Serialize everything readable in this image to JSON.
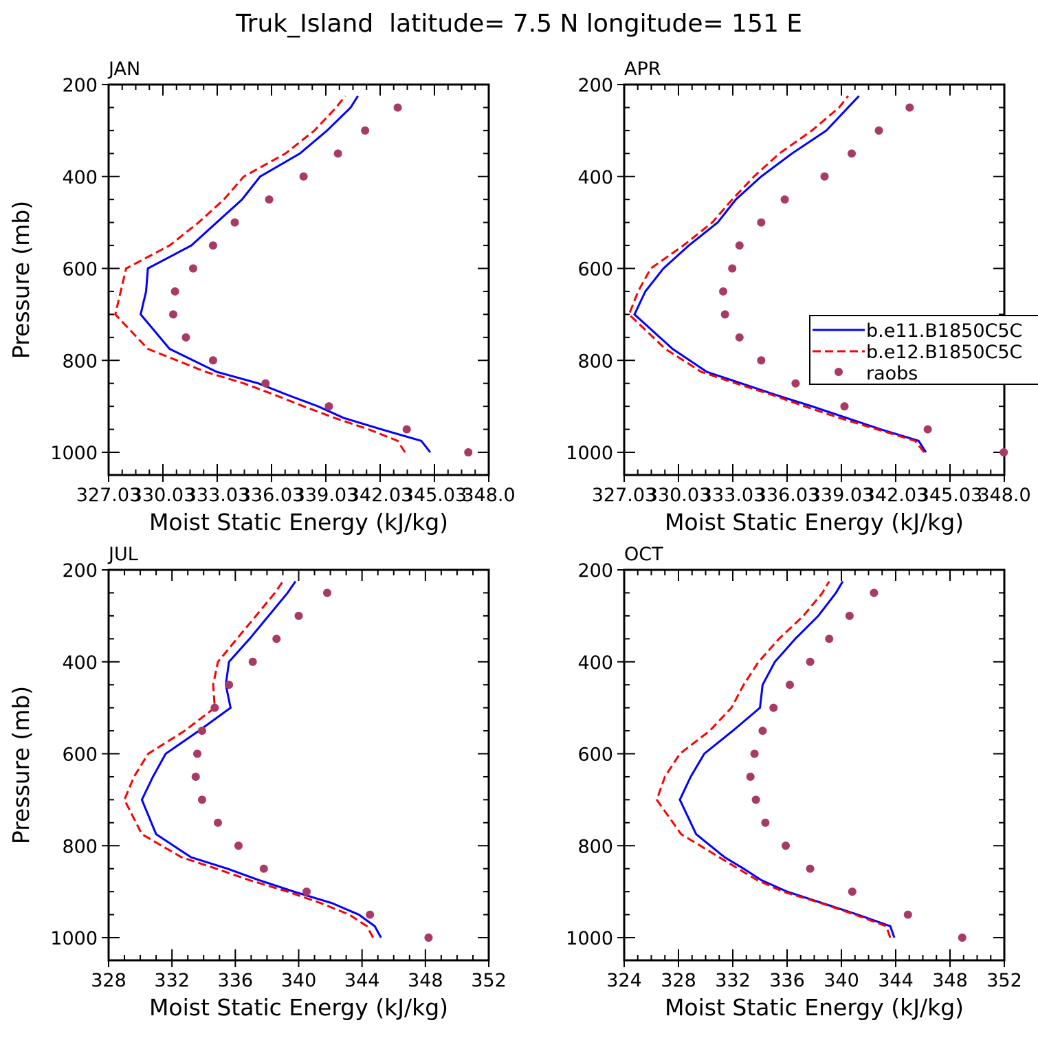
{
  "figure_title": "Truk_Island  latitude= 7.5 N longitude= 151 E",
  "colors": {
    "model_1": "#0000ff",
    "model_2": "#ff0000",
    "raobs": "#a83a66",
    "axis": "#000000"
  },
  "legend": {
    "entries": [
      "b.e11.B1850C5C",
      "b.e12.B1850C5C",
      "raobs"
    ],
    "placement": "right of APR panel, spanning past figure edge"
  },
  "chart_data": [
    {
      "type": "line",
      "panel": "JAN",
      "title": "JAN",
      "xlabel": "Moist Static Energy (kJ/kg)",
      "ylabel": "Pressure (mb)",
      "xlim": [
        327.03,
        348.03
      ],
      "ylim": [
        1000,
        200
      ],
      "x_ticks": [
        "327.03",
        "330.03",
        "333.03",
        "336.03",
        "339.03",
        "342.03",
        "345.03",
        "348.0"
      ],
      "y_ticks": [
        "200",
        "400",
        "600",
        "800",
        "1000"
      ],
      "series": [
        {
          "name": "b.e11.B1850C5C",
          "style": "solid",
          "pressure": [
            1000,
            975,
            950,
            925,
            900,
            875,
            850,
            825,
            775,
            700,
            650,
            600,
            550,
            500,
            450,
            400,
            350,
            300,
            250,
            225
          ],
          "mse": [
            344.8,
            344.3,
            342.1,
            340.0,
            338.6,
            336.9,
            335.3,
            333.0,
            330.4,
            328.8,
            329.1,
            329.2,
            331.6,
            333.0,
            334.4,
            335.4,
            337.6,
            339.1,
            340.4,
            340.8
          ]
        },
        {
          "name": "b.e12.B1850C5C",
          "style": "dashed",
          "pressure": [
            1000,
            975,
            950,
            925,
            900,
            875,
            850,
            825,
            775,
            700,
            650,
            600,
            550,
            500,
            450,
            400,
            350,
            300,
            250,
            225
          ],
          "mse": [
            343.4,
            343.0,
            341.4,
            339.5,
            337.8,
            336.2,
            334.5,
            332.4,
            329.2,
            327.4,
            327.7,
            328.0,
            330.4,
            332.0,
            333.4,
            334.5,
            336.8,
            338.4,
            339.6,
            340.1
          ]
        },
        {
          "name": "raobs",
          "style": "markers",
          "pressure": [
            1000,
            950,
            900,
            850,
            800,
            750,
            700,
            650,
            600,
            550,
            500,
            450,
            400,
            350,
            300,
            250
          ],
          "mse": [
            346.9,
            343.5,
            339.2,
            335.7,
            332.8,
            331.3,
            330.6,
            330.7,
            331.7,
            332.8,
            334.0,
            335.9,
            337.8,
            339.7,
            341.2,
            343.0
          ]
        }
      ]
    },
    {
      "type": "line",
      "panel": "APR",
      "title": "APR",
      "xlabel": "Moist Static Energy (kJ/kg)",
      "ylabel": "",
      "xlim": [
        327.03,
        348.03
      ],
      "ylim": [
        1000,
        200
      ],
      "x_ticks": [
        "327.03",
        "330.03",
        "333.03",
        "336.03",
        "339.03",
        "342.03",
        "345.03",
        "348.0"
      ],
      "y_ticks": [
        "200",
        "400",
        "600",
        "800",
        "1000"
      ],
      "series": [
        {
          "name": "b.e11.B1850C5C",
          "style": "solid",
          "pressure": [
            1000,
            975,
            950,
            925,
            900,
            875,
            850,
            825,
            775,
            700,
            650,
            600,
            550,
            500,
            450,
            400,
            350,
            300,
            250,
            225
          ],
          "mse": [
            343.7,
            343.3,
            341.2,
            339.3,
            337.4,
            335.4,
            333.5,
            331.6,
            329.7,
            327.6,
            328.2,
            329.2,
            330.6,
            332.2,
            333.2,
            334.6,
            336.3,
            338.2,
            339.4,
            340.0
          ]
        },
        {
          "name": "b.e12.B1850C5C",
          "style": "dashed",
          "pressure": [
            1000,
            975,
            950,
            925,
            900,
            875,
            850,
            825,
            775,
            700,
            650,
            600,
            550,
            500,
            450,
            400,
            350,
            300,
            250,
            225
          ],
          "mse": [
            343.6,
            343.1,
            341.0,
            338.9,
            337.0,
            335.2,
            333.2,
            331.3,
            329.3,
            327.3,
            327.8,
            328.5,
            330.3,
            331.9,
            333.0,
            334.2,
            335.6,
            337.4,
            338.9,
            339.4
          ]
        },
        {
          "name": "raobs",
          "style": "markers",
          "pressure": [
            1000,
            950,
            900,
            850,
            800,
            750,
            700,
            650,
            600,
            550,
            500,
            450,
            400,
            350,
            300,
            250
          ],
          "mse": [
            348.0,
            343.8,
            339.2,
            336.5,
            334.6,
            333.4,
            332.6,
            332.5,
            333.0,
            333.4,
            334.6,
            335.9,
            338.1,
            339.6,
            341.1,
            342.8
          ]
        }
      ]
    },
    {
      "type": "line",
      "panel": "JUL",
      "title": "JUL",
      "xlabel": "Moist Static Energy (kJ/kg)",
      "ylabel": "Pressure (mb)",
      "xlim": [
        328,
        352
      ],
      "ylim": [
        1000,
        200
      ],
      "x_ticks": [
        "328",
        "332",
        "336",
        "340",
        "344",
        "348",
        "352"
      ],
      "y_ticks": [
        "200",
        "400",
        "600",
        "800",
        "1000"
      ],
      "series": [
        {
          "name": "b.e11.B1850C5C",
          "style": "solid",
          "pressure": [
            1000,
            975,
            950,
            925,
            900,
            875,
            850,
            825,
            775,
            700,
            650,
            600,
            550,
            500,
            450,
            400,
            350,
            300,
            250,
            225
          ],
          "mse": [
            345.2,
            344.8,
            343.8,
            342.1,
            339.7,
            337.5,
            335.5,
            333.2,
            331.0,
            330.1,
            330.8,
            331.6,
            333.7,
            335.7,
            335.4,
            335.6,
            336.9,
            338.1,
            339.3,
            339.8
          ]
        },
        {
          "name": "b.e12.B1850C5C",
          "style": "dashed",
          "pressure": [
            1000,
            975,
            950,
            925,
            900,
            875,
            850,
            825,
            775,
            700,
            650,
            600,
            550,
            500,
            450,
            400,
            350,
            300,
            250,
            225
          ],
          "mse": [
            344.7,
            344.3,
            343.2,
            341.4,
            339.3,
            336.9,
            334.8,
            332.6,
            330.1,
            329.0,
            329.6,
            330.5,
            332.8,
            334.7,
            334.6,
            334.9,
            336.1,
            337.3,
            338.5,
            339.0
          ]
        },
        {
          "name": "raobs",
          "style": "markers",
          "pressure": [
            1000,
            950,
            900,
            850,
            800,
            750,
            700,
            650,
            600,
            550,
            500,
            450,
            400,
            350,
            300,
            250
          ],
          "mse": [
            348.2,
            344.5,
            340.5,
            337.8,
            336.2,
            334.9,
            333.9,
            333.5,
            333.6,
            333.9,
            334.7,
            335.6,
            337.1,
            338.6,
            340.0,
            341.8
          ]
        }
      ]
    },
    {
      "type": "line",
      "panel": "OCT",
      "title": "OCT",
      "xlabel": "Moist Static Energy (kJ/kg)",
      "ylabel": "",
      "xlim": [
        324,
        352
      ],
      "ylim": [
        1000,
        200
      ],
      "x_ticks": [
        "324",
        "328",
        "332",
        "336",
        "340",
        "344",
        "348",
        "352"
      ],
      "y_ticks": [
        "200",
        "400",
        "600",
        "800",
        "1000"
      ],
      "series": [
        {
          "name": "b.e11.B1850C5C",
          "style": "solid",
          "pressure": [
            1000,
            975,
            950,
            925,
            900,
            875,
            850,
            825,
            775,
            700,
            650,
            600,
            550,
            500,
            450,
            400,
            350,
            300,
            250,
            225
          ],
          "mse": [
            343.9,
            343.6,
            341.2,
            338.6,
            336.0,
            334.1,
            332.8,
            331.4,
            329.3,
            328.1,
            328.9,
            329.9,
            332.0,
            334.0,
            334.2,
            335.1,
            336.6,
            338.3,
            339.6,
            340.1
          ]
        },
        {
          "name": "b.e12.B1850C5C",
          "style": "dashed",
          "pressure": [
            1000,
            975,
            950,
            925,
            900,
            875,
            850,
            825,
            775,
            700,
            650,
            600,
            550,
            500,
            450,
            400,
            350,
            300,
            250,
            225
          ],
          "mse": [
            343.6,
            343.3,
            341.0,
            338.5,
            335.7,
            333.8,
            332.4,
            331.0,
            328.2,
            326.4,
            327.0,
            328.1,
            330.3,
            331.9,
            332.8,
            333.9,
            335.4,
            337.2,
            338.6,
            339.1
          ]
        },
        {
          "name": "raobs",
          "style": "markers",
          "pressure": [
            1000,
            950,
            900,
            850,
            800,
            750,
            700,
            650,
            600,
            550,
            500,
            450,
            400,
            350,
            300,
            250
          ],
          "mse": [
            348.9,
            344.9,
            340.8,
            337.7,
            335.9,
            334.4,
            333.7,
            333.3,
            333.6,
            334.2,
            335.0,
            336.2,
            337.7,
            339.1,
            340.6,
            342.4
          ]
        }
      ]
    }
  ]
}
